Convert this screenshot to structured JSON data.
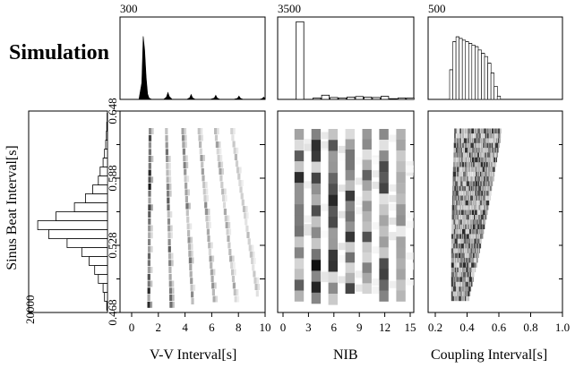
{
  "title": "Simulation",
  "histogram_maxima": {
    "vv": "300",
    "nib": "3500",
    "coupling": "500",
    "sinus": "20000"
  },
  "chart_data": [
    {
      "type": "area",
      "name": "top-left marginal histogram (V-V interval)",
      "ylim": [
        0,
        300
      ],
      "xlim": [
        0,
        10
      ],
      "x": [
        0.0,
        1.0,
        1.3,
        1.5,
        1.6,
        1.7,
        1.8,
        1.9,
        2.0,
        2.2,
        2.6,
        3.0,
        3.2,
        3.3,
        3.4,
        3.6,
        4.0,
        4.6,
        4.8,
        4.9,
        5.0,
        5.2,
        5.6,
        6.2,
        6.5,
        6.6,
        6.7,
        6.9,
        7.2,
        7.8,
        8.1,
        8.2,
        8.3,
        8.5,
        9.0,
        9.6,
        9.8,
        9.9,
        10.0
      ],
      "values": [
        0,
        0,
        0,
        60,
        230,
        180,
        80,
        20,
        5,
        0,
        0,
        0,
        8,
        25,
        10,
        0,
        0,
        0,
        6,
        18,
        6,
        0,
        0,
        0,
        5,
        15,
        5,
        0,
        0,
        0,
        4,
        12,
        4,
        0,
        0,
        0,
        3,
        8,
        2
      ]
    },
    {
      "type": "bar",
      "name": "top-middle marginal histogram (NIB)",
      "ylim": [
        0,
        3500
      ],
      "categories": [
        "0",
        "1",
        "2",
        "3",
        "4",
        "5",
        "6",
        "7",
        "8",
        "9",
        "10",
        "11",
        "12",
        "13",
        "14",
        "15"
      ],
      "values": [
        0,
        0,
        3300,
        0,
        60,
        180,
        80,
        60,
        100,
        120,
        100,
        80,
        130,
        30,
        60,
        60
      ]
    },
    {
      "type": "bar",
      "name": "top-right marginal histogram (coupling interval)",
      "ylim": [
        0,
        500
      ],
      "x": [
        0.3,
        0.32,
        0.34,
        0.36,
        0.38,
        0.4,
        0.42,
        0.44,
        0.46,
        0.48,
        0.5,
        0.52,
        0.54,
        0.56,
        0.58,
        0.6
      ],
      "values": [
        180,
        350,
        380,
        370,
        360,
        350,
        340,
        330,
        320,
        300,
        280,
        260,
        220,
        160,
        80,
        20
      ]
    },
    {
      "type": "bar",
      "name": "left marginal histogram (sinus beat interval)",
      "orientation": "horizontal",
      "xlim": [
        0,
        20000
      ],
      "bins": [
        0.47,
        0.478,
        0.486,
        0.494,
        0.502,
        0.51,
        0.518,
        0.526,
        0.534,
        0.542,
        0.55,
        0.558,
        0.566,
        0.574,
        0.582,
        0.59,
        0.598,
        0.606,
        0.614,
        0.622,
        0.63,
        0.638
      ],
      "values": [
        200,
        800,
        1200,
        2500,
        3500,
        5000,
        7000,
        11000,
        16000,
        19000,
        14000,
        9000,
        6000,
        4000,
        2500,
        2000,
        1200,
        800,
        500,
        300,
        200,
        100
      ]
    },
    {
      "type": "heatmap",
      "name": "V-V interval vs sinus beat interval",
      "xlabel": "V-V Interval[s]",
      "ylabel": "Sinus Beat Interval[s]",
      "xlim": [
        0,
        10
      ],
      "ylim": [
        0.468,
        0.648
      ],
      "xticks": [
        0,
        2,
        4,
        6,
        8,
        10
      ],
      "xticklabels": [
        "0",
        "2",
        "4",
        "6",
        "8",
        "10"
      ],
      "yticks": [
        0.468,
        0.528,
        0.588,
        0.648
      ],
      "yticklabels": [
        "0.468",
        "0.528",
        "0.588",
        "0.648"
      ],
      "bands": [
        {
          "x_start": 1.65,
          "x_end": 1.75,
          "y_start": 0.475,
          "y_end": 0.63,
          "density": 0.9
        },
        {
          "x_start": 3.35,
          "x_end": 3.0,
          "y_start": 0.475,
          "y_end": 0.63,
          "density": 0.65
        },
        {
          "x_start": 5.0,
          "x_end": 4.25,
          "y_start": 0.478,
          "y_end": 0.63,
          "density": 0.55
        },
        {
          "x_start": 6.65,
          "x_end": 5.5,
          "y_start": 0.48,
          "y_end": 0.63,
          "density": 0.45
        },
        {
          "x_start": 8.3,
          "x_end": 6.75,
          "y_start": 0.48,
          "y_end": 0.63,
          "density": 0.4
        },
        {
          "x_start": 9.95,
          "x_end": 8.0,
          "y_start": 0.485,
          "y_end": 0.63,
          "density": 0.3
        }
      ]
    },
    {
      "type": "heatmap",
      "name": "NIB vs sinus beat interval",
      "xlabel": "NIB",
      "xlim": [
        0,
        15
      ],
      "ylim": [
        0.468,
        0.648
      ],
      "xticks": [
        0,
        3,
        6,
        9,
        12,
        15
      ],
      "xticklabels": [
        "0",
        "3",
        "6",
        "9",
        "12",
        "15"
      ],
      "yticks": [
        0.468,
        0.528,
        0.588,
        0.648
      ],
      "columns": [
        {
          "nib": 2,
          "y_start": 0.478,
          "y_end": 0.632,
          "peak": 0.85
        },
        {
          "nib": 4,
          "y_start": 0.476,
          "y_end": 0.632,
          "peak": 0.95
        },
        {
          "nib": 6,
          "y_start": 0.475,
          "y_end": 0.632,
          "peak": 0.85
        },
        {
          "nib": 8,
          "y_start": 0.485,
          "y_end": 0.632,
          "peak": 0.9
        },
        {
          "nib": 10,
          "y_start": 0.485,
          "y_end": 0.632,
          "peak": 0.7
        },
        {
          "nib": 12,
          "y_start": 0.478,
          "y_end": 0.632,
          "peak": 0.75
        },
        {
          "nib": 14,
          "y_start": 0.478,
          "y_end": 0.632,
          "peak": 0.5
        }
      ]
    },
    {
      "type": "heatmap",
      "name": "coupling interval vs sinus beat interval",
      "xlabel": "Coupling Interval[s]",
      "xlim": [
        0.2,
        1.0
      ],
      "ylim": [
        0.468,
        0.648
      ],
      "xticks": [
        0.2,
        0.4,
        0.6,
        0.8,
        1.0
      ],
      "xticklabels": [
        "0.2",
        "0.4",
        "0.6",
        "0.8",
        "1.0"
      ],
      "yticks": [
        0.468,
        0.528,
        0.588,
        0.648
      ],
      "region": [
        {
          "y": 0.478,
          "x_min": 0.3,
          "x_max": 0.41
        },
        {
          "y": 0.528,
          "x_min": 0.3,
          "x_max": 0.49
        },
        {
          "y": 0.588,
          "x_min": 0.31,
          "x_max": 0.57
        },
        {
          "y": 0.632,
          "x_min": 0.32,
          "x_max": 0.62
        }
      ]
    }
  ]
}
